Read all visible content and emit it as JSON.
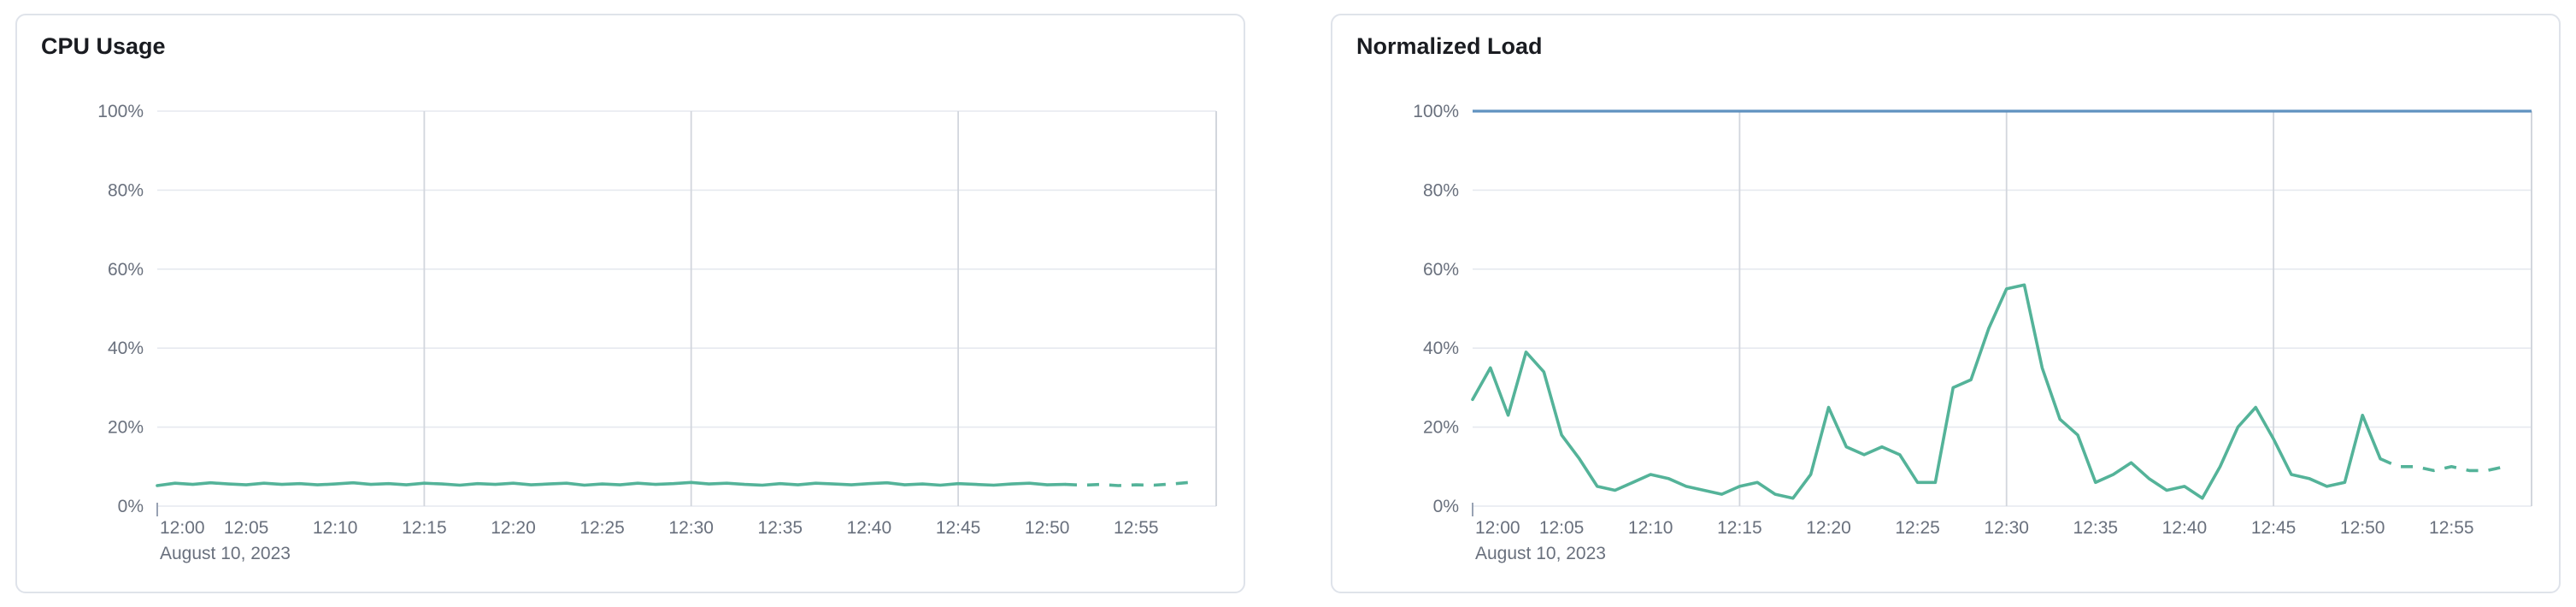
{
  "colors": {
    "series_green": "#54b399",
    "series_blue": "#6092c0",
    "grid_horizontal": "#e6e9ef",
    "grid_vertical": "#d2d6dd",
    "axis_text": "#69707d",
    "title_text": "#1a1c21",
    "card_border": "#dfe3ea"
  },
  "chart_data": [
    {
      "type": "line",
      "title": "CPU Usage",
      "xlabel": "",
      "ylabel": "",
      "ylim": [
        0,
        100
      ],
      "y_tick_values": [
        0,
        20,
        40,
        60,
        80,
        100
      ],
      "y_tick_labels": [
        "0%",
        "20%",
        "40%",
        "60%",
        "80%",
        "100%"
      ],
      "x_start_minute": 0,
      "x_end_minute": 59.5,
      "x_tick_minutes": [
        0,
        5,
        10,
        15,
        20,
        25,
        30,
        35,
        40,
        45,
        50,
        55
      ],
      "x_tick_labels": [
        "12:00",
        "12:05",
        "12:10",
        "12:15",
        "12:20",
        "12:25",
        "12:30",
        "12:35",
        "12:40",
        "12:45",
        "12:50",
        "12:55"
      ],
      "x_date_label": "August 10, 2023",
      "v_gridline_minutes": [
        15,
        30,
        45
      ],
      "grid": true,
      "legend": "none",
      "series": [
        {
          "name": "cpu-usage",
          "color": "#54b399",
          "dash_from_index": 51,
          "values": [
            5.2,
            5.8,
            5.5,
            5.9,
            5.6,
            5.4,
            5.8,
            5.5,
            5.7,
            5.4,
            5.6,
            5.9,
            5.5,
            5.7,
            5.4,
            5.8,
            5.6,
            5.3,
            5.7,
            5.5,
            5.8,
            5.4,
            5.6,
            5.8,
            5.3,
            5.6,
            5.4,
            5.8,
            5.5,
            5.7,
            6.0,
            5.6,
            5.8,
            5.5,
            5.3,
            5.7,
            5.4,
            5.8,
            5.6,
            5.4,
            5.7,
            5.9,
            5.4,
            5.6,
            5.3,
            5.7,
            5.5,
            5.3,
            5.6,
            5.8,
            5.4,
            5.5,
            5.3,
            5.5,
            5.2,
            5.4,
            5.3,
            5.6,
            6.0
          ]
        }
      ]
    },
    {
      "type": "line",
      "title": "Normalized Load",
      "xlabel": "",
      "ylabel": "",
      "ylim": [
        0,
        100
      ],
      "y_tick_values": [
        0,
        20,
        40,
        60,
        80,
        100
      ],
      "y_tick_labels": [
        "0%",
        "20%",
        "40%",
        "60%",
        "80%",
        "100%"
      ],
      "x_start_minute": 0,
      "x_end_minute": 59.5,
      "x_tick_minutes": [
        0,
        5,
        10,
        15,
        20,
        25,
        30,
        35,
        40,
        45,
        50,
        55
      ],
      "x_tick_labels": [
        "12:00",
        "12:05",
        "12:10",
        "12:15",
        "12:20",
        "12:25",
        "12:30",
        "12:35",
        "12:40",
        "12:45",
        "12:50",
        "12:55"
      ],
      "x_date_label": "August 10, 2023",
      "v_gridline_minutes": [
        15,
        30,
        45
      ],
      "grid": true,
      "legend": "none",
      "series": [
        {
          "name": "load-limit",
          "color": "#6092c0",
          "constant": 100
        },
        {
          "name": "normalized-load",
          "color": "#54b399",
          "dash_from_index": 51,
          "values": [
            27,
            35,
            23,
            39,
            34,
            18,
            12,
            5,
            4,
            6,
            8,
            7,
            5,
            4,
            3,
            5,
            6,
            3,
            2,
            8,
            25,
            15,
            13,
            15,
            13,
            6,
            6,
            30,
            32,
            45,
            55,
            56,
            35,
            22,
            18,
            6,
            8,
            11,
            7,
            4,
            5,
            2,
            10,
            20,
            25,
            17,
            8,
            7,
            5,
            6,
            23,
            12,
            10,
            10,
            9,
            10,
            9,
            9,
            10
          ]
        }
      ]
    }
  ]
}
